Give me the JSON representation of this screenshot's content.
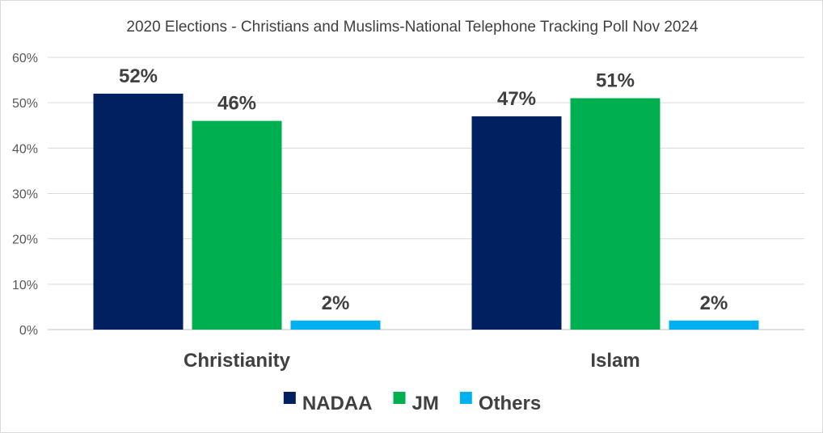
{
  "chart_data": {
    "type": "bar",
    "title": "2020 Elections - Christians and Muslims-National Telephone Tracking Poll Nov 2024",
    "categories": [
      "Christianity",
      "Islam"
    ],
    "series": [
      {
        "name": "NADAA",
        "values": [
          52,
          47
        ],
        "labels": [
          "52%",
          "47%"
        ],
        "color": "#002060"
      },
      {
        "name": "JM",
        "values": [
          46,
          51
        ],
        "labels": [
          "46%",
          "51%"
        ],
        "color": "#00B050"
      },
      {
        "name": "Others",
        "values": [
          2,
          2
        ],
        "labels": [
          "2%",
          "2%"
        ],
        "color": "#00B0F0"
      }
    ],
    "yticks": [
      "0%",
      "10%",
      "20%",
      "30%",
      "40%",
      "50%",
      "60%"
    ],
    "ylim": [
      0,
      60
    ],
    "xlabel": "",
    "ylabel": "",
    "grid": true,
    "legend_position": "bottom"
  }
}
